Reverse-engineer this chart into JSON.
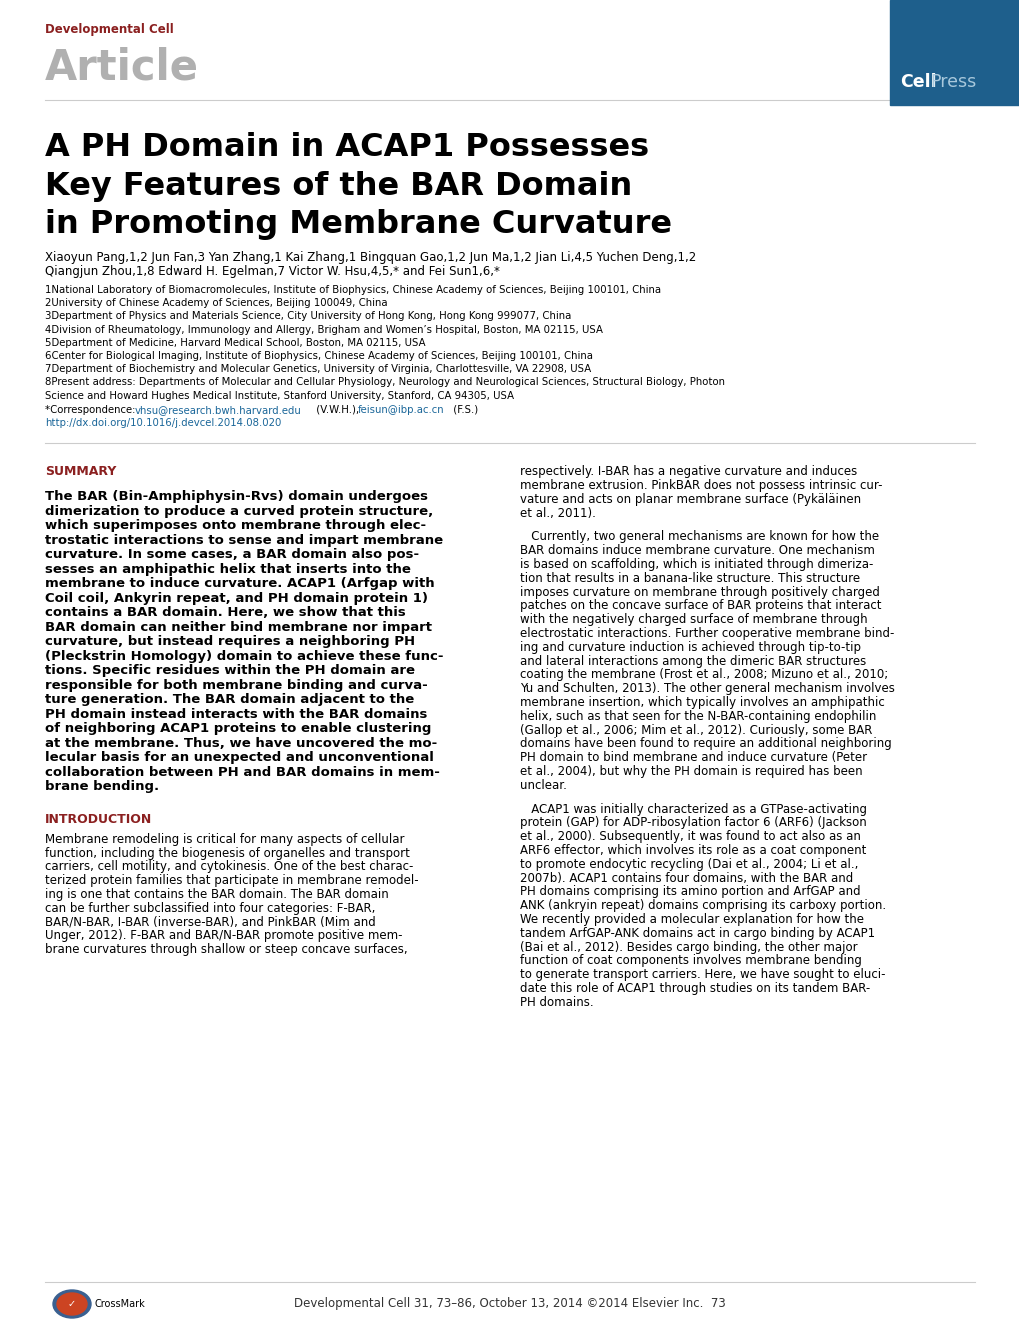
{
  "page_bg": "#ffffff",
  "top_bar_color": "#1e5f8c",
  "journal_label": "Developmental Cell",
  "journal_label_color": "#8b2020",
  "article_label": "Article",
  "article_label_color": "#b0b0b0",
  "title_line1": "A PH Domain in ACAP1 Possesses",
  "title_line2": "Key Features of the BAR Domain",
  "title_line3": "in Promoting Membrane Curvature",
  "authors_line1": "Xiaoyun Pang,",
  "authors_sup1": "1,2",
  "authors_rest1": " Jun Fan,",
  "authors_sup2": "3",
  "authors_rest2": " Yan Zhang,",
  "authors_sup3": "1",
  "authors_rest3": " Kai Zhang,",
  "authors_sup4": "1",
  "authors_rest4": " Bingquan Gao,",
  "authors_sup5": "1,2",
  "authors_rest5": " Jun Ma,",
  "authors_sup6": "1,2",
  "authors_rest6": " Jian Li,",
  "authors_sup7": "4,5",
  "authors_rest7": " Yuchen Deng,",
  "authors_sup8": "1,2",
  "affil1": "1National Laboratory of Biomacromolecules, Institute of Biophysics, Chinese Academy of Sciences, Beijing 100101, China",
  "affil2": "2University of Chinese Academy of Sciences, Beijing 100049, China",
  "affil3": "3Department of Physics and Materials Science, City University of Hong Kong, Hong Kong 999077, China",
  "affil4": "4Division of Rheumatology, Immunology and Allergy, Brigham and Women’s Hospital, Boston, MA 02115, USA",
  "affil5": "5Department of Medicine, Harvard Medical School, Boston, MA 02115, USA",
  "affil6": "6Center for Biological Imaging, Institute of Biophysics, Chinese Academy of Sciences, Beijing 100101, China",
  "affil7": "7Department of Biochemistry and Molecular Genetics, University of Virginia, Charlottesville, VA 22908, USA",
  "affil8": "8Present address: Departments of Molecular and Cellular Physiology, Neurology and Neurological Sciences, Structural Biology, Photon",
  "affil8b": "Science and Howard Hughes Medical Institute, Stanford University, Stanford, CA 94305, USA",
  "corr_prefix": "*Correspondence: ",
  "corr_email1": "vhsu@research.bwh.harvard.edu",
  "corr_mid": " (V.W.H.), ",
  "corr_email2": "feisun@ibp.ac.cn",
  "corr_suffix": " (F.S.)",
  "doi": "http://dx.doi.org/10.1016/j.devcel.2014.08.020",
  "link_color": "#1a6699",
  "summary_label": "SUMMARY",
  "section_label_color": "#8b2020",
  "summary_lines": [
    "The BAR (Bin-Amphiphysin-Rvs) domain undergoes",
    "dimerization to produce a curved protein structure,",
    "which superimposes onto membrane through elec-",
    "trostatic interactions to sense and impart membrane",
    "curvature. In some cases, a BAR domain also pos-",
    "sesses an amphipathic helix that inserts into the",
    "membrane to induce curvature. ACAP1 (Arfgap with",
    "Coil coil, Ankyrin repeat, and PH domain protein 1)",
    "contains a BAR domain. Here, we show that this",
    "BAR domain can neither bind membrane nor impart",
    "curvature, but instead requires a neighboring PH",
    "(Pleckstrin Homology) domain to achieve these func-",
    "tions. Specific residues within the PH domain are",
    "responsible for both membrane binding and curva-",
    "ture generation. The BAR domain adjacent to the",
    "PH domain instead interacts with the BAR domains",
    "of neighboring ACAP1 proteins to enable clustering",
    "at the membrane. Thus, we have uncovered the mo-",
    "lecular basis for an unexpected and unconventional",
    "collaboration between PH and BAR domains in mem-",
    "brane bending."
  ],
  "intro_label": "INTRODUCTION",
  "intro_lines": [
    "Membrane remodeling is critical for many aspects of cellular",
    "function, including the biogenesis of organelles and transport",
    "carriers, cell motility, and cytokinesis. One of the best charac-",
    "terized protein families that participate in membrane remodel-",
    "ing is one that contains the BAR domain. The BAR domain",
    "can be further subclassified into four categories: F-BAR,",
    "BAR/N-BAR, I-BAR (inverse-BAR), and PinkBAR (Mim and",
    "Unger, 2012). F-BAR and BAR/N-BAR promote positive mem-",
    "brane curvatures through shallow or steep concave surfaces,"
  ],
  "right_col_lines1": [
    "respectively. I-BAR has a negative curvature and induces",
    "membrane extrusion. PinkBAR does not possess intrinsic cur-",
    "vature and acts on planar membrane surface (Pykäläinen",
    "et al., 2011)."
  ],
  "right_col_lines2": [
    "   Currently, two general mechanisms are known for how the",
    "BAR domains induce membrane curvature. One mechanism",
    "is based on scaffolding, which is initiated through dimeriza-",
    "tion that results in a banana-like structure. This structure",
    "imposes curvature on membrane through positively charged",
    "patches on the concave surface of BAR proteins that interact",
    "with the negatively charged surface of membrane through",
    "electrostatic interactions. Further cooperative membrane bind-",
    "ing and curvature induction is achieved through tip-to-tip",
    "and lateral interactions among the dimeric BAR structures",
    "coating the membrane (Frost et al., 2008; Mizuno et al., 2010;",
    "Yu and Schulten, 2013). The other general mechanism involves",
    "membrane insertion, which typically involves an amphipathic",
    "helix, such as that seen for the N-BAR-containing endophilin",
    "(Gallop et al., 2006; Mim et al., 2012). Curiously, some BAR",
    "domains have been found to require an additional neighboring",
    "PH domain to bind membrane and induce curvature (Peter",
    "et al., 2004), but why the PH domain is required has been",
    "unclear."
  ],
  "right_col_lines3": [
    "   ACAP1 was initially characterized as a GTPase-activating",
    "protein (GAP) for ADP-ribosylation factor 6 (ARF6) (Jackson",
    "et al., 2000). Subsequently, it was found to act also as an",
    "ARF6 effector, which involves its role as a coat component",
    "to promote endocytic recycling (Dai et al., 2004; Li et al.,",
    "2007b). ACAP1 contains four domains, with the BAR and",
    "PH domains comprising its amino portion and ArfGAP and",
    "ANK (ankryin repeat) domains comprising its carboxy portion.",
    "We recently provided a molecular explanation for how the",
    "tandem ArfGAP-ANK domains act in cargo binding by ACAP1",
    "(Bai et al., 2012). Besides cargo binding, the other major",
    "function of coat components involves membrane bending",
    "to generate transport carriers. Here, we have sought to eluci-",
    "date this role of ACAP1 through studies on its tandem BAR-",
    "PH domains."
  ],
  "footer_text": "Developmental Cell 31, 73–86, October 13, 2014 ©2014 Elsevier Inc.  73"
}
